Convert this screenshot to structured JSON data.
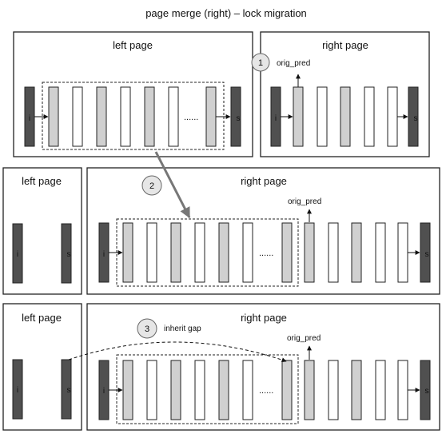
{
  "title": "page merge (right) – lock migration",
  "colors": {
    "dark": "#505050",
    "light": "#d0d0d0",
    "white": "#ffffff",
    "stroke": "#222222",
    "arrow_gray": "#777777"
  },
  "step1": {
    "left_title": "left page",
    "right_title": "right page",
    "badge": "1",
    "label": "orig_pred",
    "i": "i",
    "s": "s",
    "ellipsis": "......"
  },
  "step2": {
    "left_title": "left page",
    "right_title": "right page",
    "badge": "2",
    "label": "orig_pred",
    "i": "i",
    "s": "s",
    "ellipsis": "......"
  },
  "step3": {
    "left_title": "left page",
    "right_title": "right page",
    "badge": "3",
    "badge_text": "inherit gap",
    "label": "orig_pred",
    "i": "i",
    "s": "s",
    "ellipsis": "......"
  }
}
